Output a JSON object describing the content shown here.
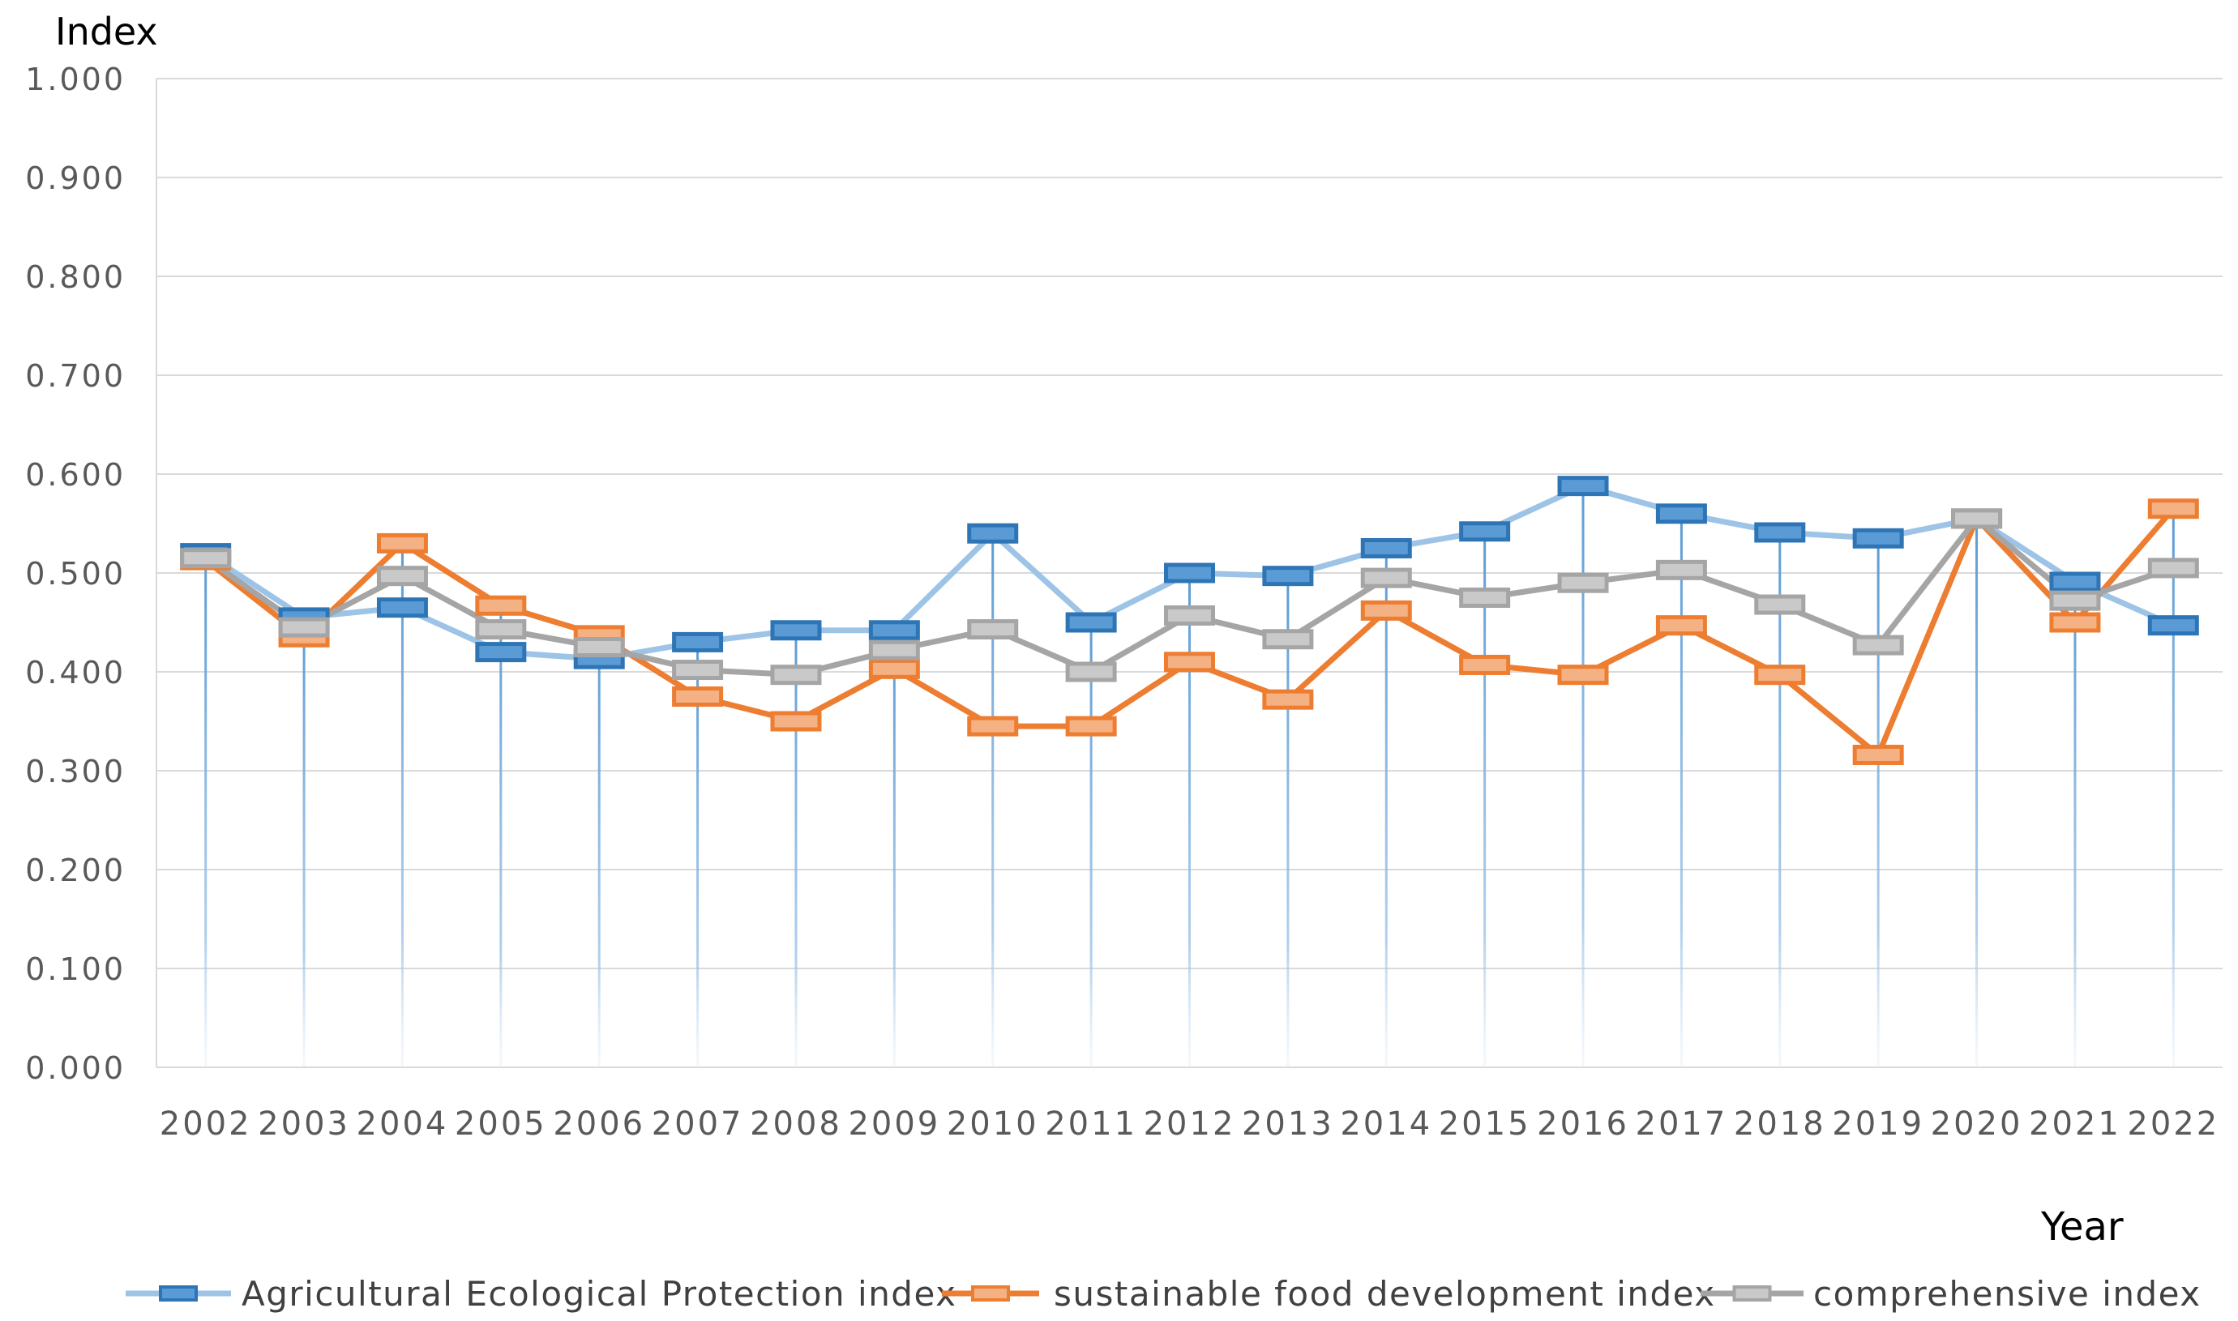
{
  "chart_data": {
    "type": "line",
    "title": "",
    "ylabel": "Index",
    "xlabel": "Year",
    "ylim": [
      0,
      1
    ],
    "yticks": [
      "0.000",
      "0.100",
      "0.200",
      "0.300",
      "0.400",
      "0.500",
      "0.600",
      "0.700",
      "0.800",
      "0.900",
      "1.000"
    ],
    "categories": [
      "2002",
      "2003",
      "2004",
      "2005",
      "2006",
      "2007",
      "2008",
      "2009",
      "2010",
      "2011",
      "2012",
      "2013",
      "2014",
      "2015",
      "2016",
      "2017",
      "2018",
      "2019",
      "2020",
      "2021",
      "2022"
    ],
    "grid": true,
    "legend_position": "bottom",
    "series": [
      {
        "name": "Agricultural Ecological Protection index",
        "line_color": "#9DC3E6",
        "marker_fill": "#5B9BD5",
        "marker_stroke": "#2E75B6",
        "values": [
          0.52,
          0.455,
          0.465,
          0.42,
          0.413,
          0.43,
          0.442,
          0.442,
          0.54,
          0.45,
          0.5,
          0.497,
          0.525,
          0.542,
          0.588,
          0.56,
          0.541,
          0.535,
          0.555,
          0.491,
          0.447
        ]
      },
      {
        "name": "sustainable food development index",
        "line_color": "#ED7D31",
        "marker_fill": "#F4B183",
        "marker_stroke": "#ED7D31",
        "values": [
          0.513,
          0.435,
          0.53,
          0.467,
          0.437,
          0.375,
          0.35,
          0.403,
          0.345,
          0.345,
          0.41,
          0.372,
          0.462,
          0.407,
          0.397,
          0.447,
          0.397,
          0.316,
          0.555,
          0.45,
          0.565
        ]
      },
      {
        "name": "comprehensive index",
        "line_color": "#A5A5A5",
        "marker_fill": "#C9C9C9",
        "marker_stroke": "#A5A5A5",
        "values": [
          0.515,
          0.445,
          0.497,
          0.443,
          0.425,
          0.402,
          0.397,
          0.422,
          0.443,
          0.4,
          0.457,
          0.433,
          0.495,
          0.475,
          0.49,
          0.503,
          0.468,
          0.427,
          0.555,
          0.472,
          0.505
        ]
      }
    ]
  }
}
